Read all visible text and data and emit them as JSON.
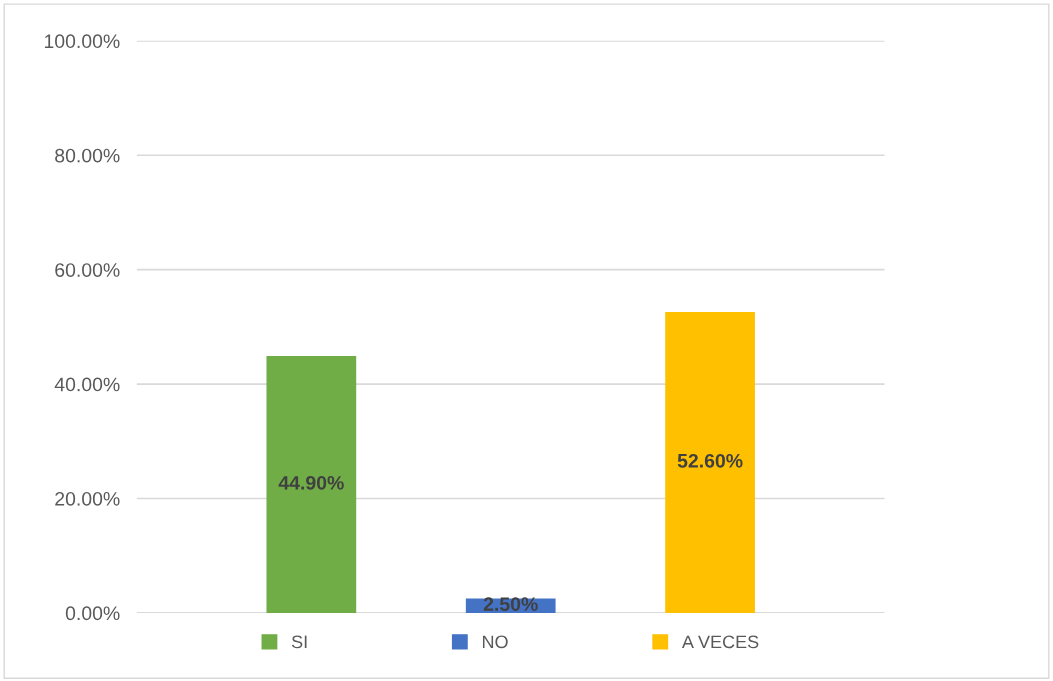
{
  "chart_data": {
    "type": "bar",
    "categories": [
      null
    ],
    "series": [
      {
        "name": "SI",
        "color": "#70ad47",
        "values": [
          44.9
        ],
        "value_labels": [
          "44.90%"
        ]
      },
      {
        "name": "NO",
        "color": "#4472c4",
        "values": [
          2.5
        ],
        "value_labels": [
          "2.50%"
        ]
      },
      {
        "name": "A VECES",
        "color": "#ffc000",
        "values": [
          52.6
        ],
        "value_labels": [
          "52.60%"
        ]
      }
    ],
    "ylim": [
      0,
      100
    ],
    "yticks": [
      {
        "value": 0,
        "label": "0.00%"
      },
      {
        "value": 20,
        "label": "20.00%"
      },
      {
        "value": 40,
        "label": "40.00%"
      },
      {
        "value": 60,
        "label": "60.00%"
      },
      {
        "value": 80,
        "label": "80.00%"
      },
      {
        "value": 100,
        "label": "100.00%"
      }
    ],
    "grid": "y",
    "legend": "bottom"
  }
}
